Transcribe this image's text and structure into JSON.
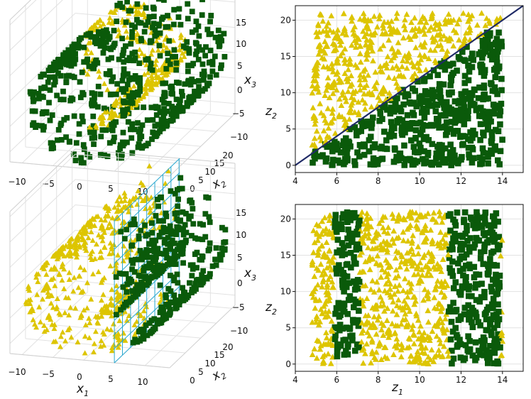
{
  "colors": {
    "class_a": "#ddc500",
    "class_b": "#0a5a0a",
    "boundary_line": "#1f2a66",
    "plane": "#2aa8d0",
    "grid": "#e2e2e2",
    "frame": "#111111"
  },
  "markers": {
    "class_a": "triangle",
    "class_b": "square"
  },
  "chart_data": [
    {
      "type": "scatter3d",
      "panel": "top-left",
      "axes": {
        "x": {
          "label_base": "",
          "label_sub": "",
          "ticks": [
            "−10",
            "−5",
            "0",
            "5",
            "10"
          ],
          "range": [
            -12,
            14
          ]
        },
        "y": {
          "label_base": "x",
          "label_sub": "2",
          "ticks": [
            "0",
            "5",
            "10",
            "15",
            "20"
          ],
          "range": [
            0,
            21
          ]
        },
        "z": {
          "label_base": "x",
          "label_sub": "3",
          "ticks": [
            "15",
            "10",
            "5",
            "0",
            "−5",
            "−10"
          ],
          "range": [
            -12,
            16
          ]
        }
      },
      "series": [
        {
          "marker": "class_a",
          "description_points": 400
        },
        {
          "marker": "class_b",
          "description_points": 600
        }
      ],
      "grid": true
    },
    {
      "type": "scatter",
      "panel": "top-right",
      "axes": {
        "x": {
          "label_base": "z",
          "label_sub": "1",
          "ticks": [
            "4",
            "6",
            "8",
            "10",
            "12",
            "14"
          ],
          "range": [
            4,
            15
          ]
        },
        "y": {
          "label_base": "z",
          "label_sub": "2",
          "ticks": [
            "0",
            "5",
            "10",
            "15",
            "20"
          ],
          "range": [
            -1,
            22
          ]
        }
      },
      "z1_range": [
        4.8,
        14.0
      ],
      "z2_range": [
        0,
        21
      ],
      "decision_line": {
        "x": [
          4,
          15
        ],
        "y": [
          0,
          22
        ]
      },
      "grid": true
    },
    {
      "type": "scatter3d",
      "panel": "bottom-left",
      "axes": {
        "x": {
          "label_base": "x",
          "label_sub": "1",
          "ticks": [
            "−10",
            "−5",
            "0",
            "5",
            "10"
          ],
          "range": [
            -12,
            14
          ]
        },
        "y": {
          "label_base": "x",
          "label_sub": "2",
          "ticks": [
            "0",
            "5",
            "10",
            "15",
            "20"
          ],
          "range": [
            0,
            21
          ]
        },
        "z": {
          "label_base": "x",
          "label_sub": "3",
          "ticks": [
            "15",
            "10",
            "5",
            "0",
            "−5",
            "−10"
          ],
          "range": [
            -12,
            16
          ]
        }
      },
      "decision_plane": {
        "x1": 5
      },
      "grid": true
    },
    {
      "type": "scatter",
      "panel": "bottom-right",
      "axes": {
        "x": {
          "label_base": "z",
          "label_sub": "1",
          "ticks": [
            "4",
            "6",
            "8",
            "10",
            "12",
            "14"
          ],
          "range": [
            4,
            15
          ]
        },
        "y": {
          "label_base": "z",
          "label_sub": "2",
          "ticks": [
            "0",
            "5",
            "10",
            "15",
            "20"
          ],
          "range": [
            -1,
            22
          ]
        }
      },
      "z1_range": [
        4.8,
        14.0
      ],
      "z2_range": [
        0,
        21
      ],
      "class_b_bands": [
        [
          5.9,
          7.1
        ],
        [
          11.4,
          13.9
        ]
      ],
      "grid": true
    }
  ]
}
